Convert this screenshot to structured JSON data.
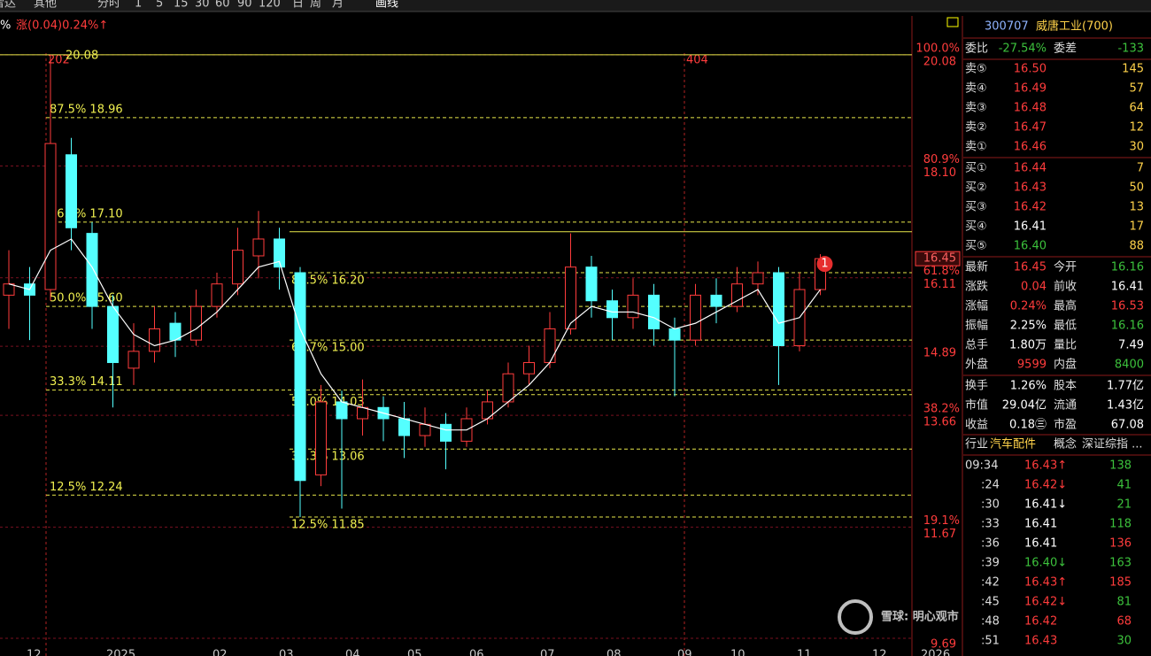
{
  "toolbar": [
    "雷达",
    "其他",
    "分时",
    "1",
    "5",
    "15",
    "30",
    "60",
    "90",
    "120",
    "日",
    "周",
    "月",
    "画线"
  ],
  "change_prefix": "%",
  "change_label": "涨(0.04)0.24%↑",
  "chart_data": {
    "type": "candlestick",
    "open": [
      15.8,
      16.0,
      15.9,
      18.3,
      16.9,
      15.6,
      14.5,
      14.8,
      15.3,
      15.0,
      15.6,
      16.0,
      16.5,
      16.8,
      16.2,
      12.6,
      13.9,
      13.6,
      13.8,
      13.6,
      13.3,
      13.5,
      13.2,
      13.6,
      13.9,
      14.4,
      14.6,
      15.2,
      16.3,
      15.7,
      15.4,
      15.8,
      15.2,
      15.0,
      15.8,
      15.6,
      16.0,
      16.2,
      14.9,
      15.9
    ],
    "high": [
      16.6,
      16.3,
      20.08,
      18.6,
      17.1,
      15.8,
      15.3,
      15.6,
      15.5,
      15.9,
      16.2,
      17.0,
      17.3,
      17.0,
      16.3,
      14.2,
      14.1,
      14.3,
      14.0,
      13.9,
      13.8,
      13.7,
      13.8,
      14.1,
      14.6,
      14.9,
      15.5,
      16.9,
      16.5,
      15.9,
      16.1,
      16.0,
      15.4,
      16.0,
      16.1,
      16.3,
      16.4,
      16.3,
      16.2,
      16.53
    ],
    "low": [
      15.2,
      15.0,
      15.7,
      16.6,
      15.2,
      13.8,
      14.2,
      14.6,
      14.7,
      14.9,
      15.4,
      15.8,
      16.1,
      15.9,
      11.85,
      12.4,
      12.0,
      13.3,
      13.2,
      12.9,
      13.1,
      12.7,
      13.1,
      13.5,
      13.8,
      14.2,
      14.5,
      15.1,
      15.4,
      15.0,
      15.2,
      14.9,
      14.0,
      14.9,
      15.3,
      15.5,
      15.8,
      14.2,
      14.8,
      15.8
    ],
    "close": [
      16.0,
      15.8,
      18.5,
      17.0,
      15.6,
      14.6,
      14.8,
      15.2,
      15.0,
      15.6,
      16.0,
      16.6,
      16.8,
      16.3,
      12.5,
      13.9,
      13.6,
      13.8,
      13.6,
      13.3,
      13.5,
      13.2,
      13.6,
      13.9,
      14.4,
      14.6,
      15.2,
      16.3,
      15.7,
      15.4,
      15.8,
      15.2,
      15.0,
      15.8,
      15.6,
      16.0,
      16.2,
      14.9,
      15.9,
      16.45
    ],
    "ma": [
      16.0,
      15.9,
      16.6,
      16.8,
      16.3,
      15.6,
      15.1,
      14.9,
      15.0,
      15.2,
      15.5,
      15.9,
      16.3,
      16.4,
      15.2,
      14.4,
      13.9,
      13.8,
      13.7,
      13.6,
      13.5,
      13.4,
      13.4,
      13.6,
      13.9,
      14.2,
      14.6,
      15.3,
      15.6,
      15.5,
      15.5,
      15.4,
      15.2,
      15.3,
      15.5,
      15.7,
      15.9,
      15.3,
      15.4,
      15.9
    ],
    "up_color": "#ff3c3c",
    "down_color": "#54ffff",
    "ma_color": "#ffffff",
    "ylim": [
      9.47,
      20.74
    ],
    "yticks": [
      20.08,
      {
        "value": 18.1,
        "label": "18.10"
      },
      16.11,
      14.89,
      13.66,
      11.67,
      9.69
    ],
    "pct_levels": [
      {
        "value": 20.08,
        "label": "100.0%"
      },
      {
        "value": 18.1,
        "label": "80.9%"
      },
      {
        "value": 16.11,
        "label": "61.8%"
      },
      {
        "value": 13.66,
        "label": "38.2%"
      },
      {
        "value": 11.67,
        "label": "19.1%"
      }
    ],
    "last": 16.45,
    "fib_left": [
      {
        "value": 20.08,
        "label": "20.08"
      },
      {
        "value": 18.96,
        "label": "87.5% 18.96"
      },
      {
        "value": 17.1,
        "label": "66.7% 17.10"
      },
      {
        "value": 15.6,
        "label": "50.0% 15.60"
      },
      {
        "value": 14.11,
        "label": "33.3% 14.11"
      },
      {
        "value": 12.24,
        "label": "12.5% 12.24"
      }
    ],
    "fib_right_top": 16.93,
    "fib_right": [
      {
        "value": 16.2,
        "label": "87.5% 16.20"
      },
      {
        "value": 15.0,
        "label": "66.7% 15.00"
      },
      {
        "value": 14.03,
        "label": "50.0% 14.03"
      },
      {
        "value": 13.06,
        "label": "33.3% 13.06"
      },
      {
        "value": 11.85,
        "label": "12.5% 11.85"
      }
    ],
    "markers": [
      "202",
      "404"
    ],
    "badge": "1",
    "categories": [
      "12",
      "2025",
      "02",
      "03",
      "04",
      "05",
      "06",
      "07",
      "08",
      "09",
      "10",
      "11",
      "12",
      "2026"
    ]
  },
  "panel": {
    "code": "300707",
    "name": "威唐工业(700)",
    "wb_label": "委比",
    "wb": "-27.54%",
    "wc_label": "委差",
    "wc": "-133",
    "asks": [
      [
        "卖⑤",
        "16.50",
        "145"
      ],
      [
        "卖④",
        "16.49",
        "57"
      ],
      [
        "卖③",
        "16.48",
        "64"
      ],
      [
        "卖②",
        "16.47",
        "12"
      ],
      [
        "卖①",
        "16.46",
        "30"
      ]
    ],
    "bids": [
      [
        "买①",
        "16.44",
        "7"
      ],
      [
        "买②",
        "16.43",
        "50"
      ],
      [
        "买③",
        "16.42",
        "13"
      ],
      [
        "买④",
        "16.41",
        "17"
      ],
      [
        "买⑤",
        "16.40",
        "88"
      ]
    ],
    "bid_price_colors": [
      "#ff3c3c",
      "#ff3c3c",
      "#ff3c3c",
      "#ffffff",
      "#3cc13c"
    ],
    "stats": [
      [
        "最新",
        "16.45",
        "今开",
        "16.16"
      ],
      [
        "涨跌",
        "0.04",
        "前收",
        "16.41"
      ],
      [
        "涨幅",
        "0.24%",
        "最高",
        "16.53"
      ],
      [
        "振幅",
        "2.25%",
        "最低",
        "16.16"
      ],
      [
        "总手",
        "1.80万",
        "量比",
        "7.49"
      ],
      [
        "外盘",
        "9599",
        "内盘",
        "8400"
      ],
      [
        "换手",
        "1.26%",
        "股本",
        "1.77亿"
      ],
      [
        "市值",
        "29.04亿",
        "流通",
        "1.43亿"
      ],
      [
        "收益",
        "0.18㊂",
        "市盈",
        "67.08"
      ]
    ],
    "stat_colors": [
      [
        "#ff3c3c",
        "#3cc13c"
      ],
      [
        "#ff3c3c",
        "#ffffff"
      ],
      [
        "#ff3c3c",
        "#ff3c3c"
      ],
      [
        "#ffffff",
        "#3cc13c"
      ],
      [
        "#ffffff",
        "#ffffff"
      ],
      [
        "#ff3c3c",
        "#3cc13c"
      ],
      [
        "#ffffff",
        "#ffffff"
      ],
      [
        "#ffffff",
        "#ffffff"
      ],
      [
        "#ffffff",
        "#ffffff"
      ]
    ],
    "industry": [
      "行业",
      "汽车配件",
      "概念",
      "深证综指 ..."
    ],
    "ticks": [
      [
        "09:34",
        "16.43↑",
        "138"
      ],
      [
        ":24",
        "16.42↓",
        "41"
      ],
      [
        ":30",
        "16.41↓",
        "21"
      ],
      [
        ":33",
        "16.41",
        "118"
      ],
      [
        ":36",
        "16.41",
        "136"
      ],
      [
        ":39",
        "16.40↓",
        "163"
      ],
      [
        ":42",
        "16.43↑",
        "185"
      ],
      [
        ":45",
        "16.42↓",
        "81"
      ],
      [
        ":48",
        "16.42",
        "68"
      ],
      [
        ":51",
        "16.43",
        "30"
      ]
    ],
    "tick_price_colors": [
      "#ff3c3c",
      "#ff3c3c",
      "#ffffff",
      "#ffffff",
      "#ffffff",
      "#3cc13c",
      "#ff3c3c",
      "#ff3c3c",
      "#ff3c3c",
      "#ff3c3c"
    ],
    "tick_vol_colors": [
      "#3cc13c",
      "#3cc13c",
      "#3cc13c",
      "#3cc13c",
      "#ff3c3c",
      "#3cc13c",
      "#ff3c3c",
      "#3cc13c",
      "#ff3c3c",
      "#3cc13c"
    ]
  },
  "watermark": "雪球: 明心观市"
}
